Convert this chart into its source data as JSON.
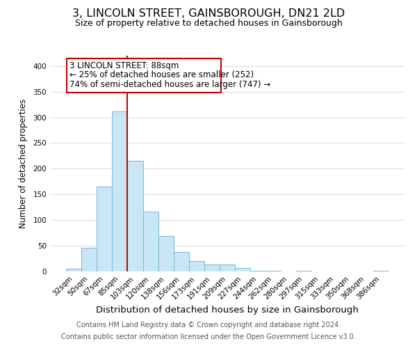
{
  "title": "3, LINCOLN STREET, GAINSBOROUGH, DN21 2LD",
  "subtitle": "Size of property relative to detached houses in Gainsborough",
  "xlabel": "Distribution of detached houses by size in Gainsborough",
  "ylabel": "Number of detached properties",
  "bar_labels": [
    "32sqm",
    "50sqm",
    "67sqm",
    "85sqm",
    "103sqm",
    "120sqm",
    "138sqm",
    "156sqm",
    "173sqm",
    "191sqm",
    "209sqm",
    "227sqm",
    "244sqm",
    "262sqm",
    "280sqm",
    "297sqm",
    "315sqm",
    "333sqm",
    "350sqm",
    "368sqm",
    "386sqm"
  ],
  "bar_values": [
    5,
    46,
    165,
    312,
    216,
    117,
    69,
    38,
    20,
    13,
    13,
    7,
    1,
    2,
    0,
    1,
    0,
    0,
    0,
    0,
    2
  ],
  "bar_color": "#c8e6f5",
  "bar_edge_color": "#7ab8d4",
  "vline_x": 3,
  "vline_color": "#cc0000",
  "annotation_line1": "3 LINCOLN STREET: 88sqm",
  "annotation_line2": "← 25% of detached houses are smaller (252)",
  "annotation_line3": "74% of semi-detached houses are larger (747) →",
  "box_edge_color": "#cc0000",
  "ylim": [
    0,
    420
  ],
  "yticks": [
    0,
    50,
    100,
    150,
    200,
    250,
    300,
    350,
    400
  ],
  "footer_line1": "Contains HM Land Registry data © Crown copyright and database right 2024.",
  "footer_line2": "Contains public sector information licensed under the Open Government Licence v3.0.",
  "background_color": "#ffffff",
  "grid_color": "#d0dff0",
  "title_fontsize": 11.5,
  "subtitle_fontsize": 9,
  "xlabel_fontsize": 9.5,
  "ylabel_fontsize": 8.5,
  "tick_fontsize": 7.5,
  "annotation_fontsize": 8.5,
  "footer_fontsize": 7
}
